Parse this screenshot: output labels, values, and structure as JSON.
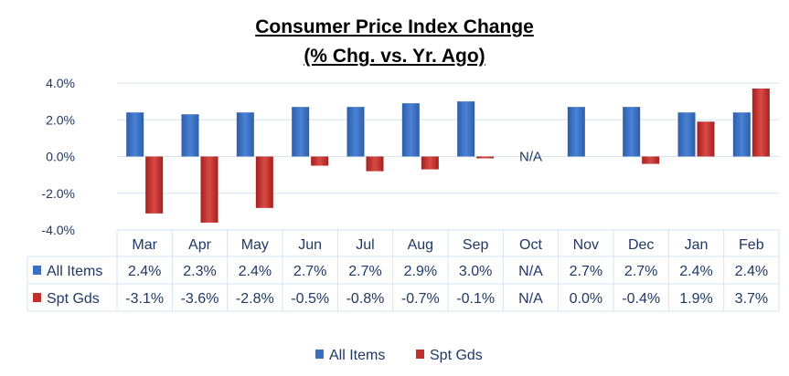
{
  "chart_data": {
    "type": "bar",
    "title": "Consumer Price Index Change",
    "subtitle": "(% Chg. vs. Yr. Ago)",
    "categories": [
      "Mar",
      "Apr",
      "May",
      "Jun",
      "Jul",
      "Aug",
      "Sep",
      "Oct",
      "Nov",
      "Dec",
      "Jan",
      "Feb"
    ],
    "series": [
      {
        "name": "All Items",
        "color": "#3a6fc4",
        "values": [
          2.4,
          2.3,
          2.4,
          2.7,
          2.7,
          2.9,
          3.0,
          null,
          2.7,
          2.7,
          2.4,
          2.4
        ],
        "labels": [
          "2.4%",
          "2.3%",
          "2.4%",
          "2.7%",
          "2.7%",
          "2.9%",
          "3.0%",
          "N/A",
          "2.7%",
          "2.7%",
          "2.4%",
          "2.4%"
        ]
      },
      {
        "name": "Spt Gds",
        "color": "#c0302f",
        "values": [
          -3.1,
          -3.6,
          -2.8,
          -0.5,
          -0.8,
          -0.7,
          -0.1,
          null,
          0.0,
          -0.4,
          1.9,
          3.7
        ],
        "labels": [
          "-3.1%",
          "-3.6%",
          "-2.8%",
          "-0.5%",
          "-0.8%",
          "-0.7%",
          "-0.1%",
          "N/A",
          "0.0%",
          "-0.4%",
          "1.9%",
          "3.7%"
        ]
      }
    ],
    "annotations": [
      {
        "category": "Oct",
        "text": "N/A"
      }
    ],
    "ylim": [
      -4,
      4
    ],
    "yticks": [
      "-4.0%",
      "-2.0%",
      "0.0%",
      "2.0%",
      "4.0%"
    ],
    "grid": true,
    "legend": "bottom",
    "data_table": true
  }
}
